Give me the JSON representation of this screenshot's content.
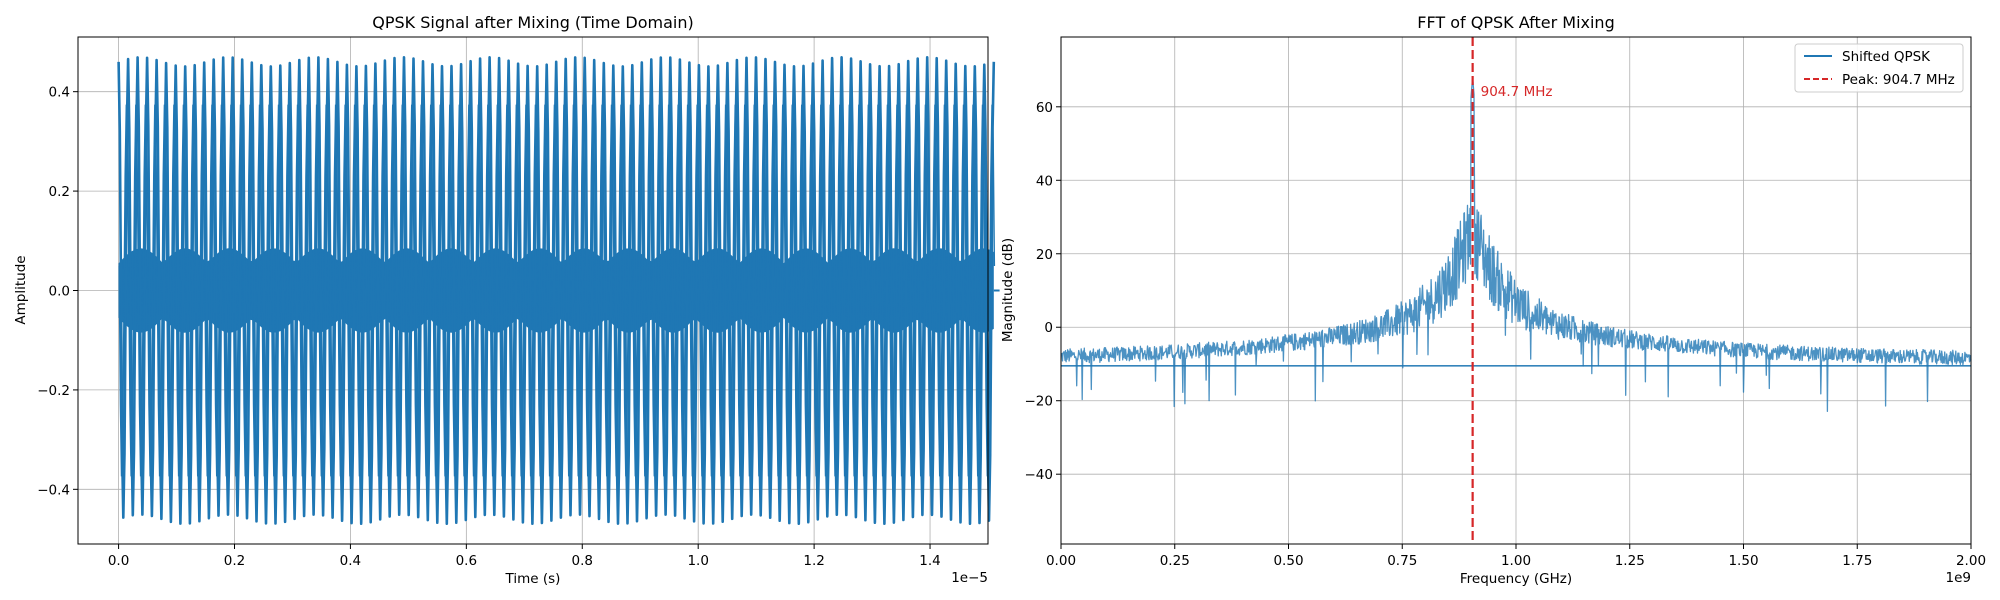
{
  "chart_data": [
    {
      "type": "line",
      "title": "QPSK Signal after Mixing (Time Domain)",
      "xlabel": "Time (s)",
      "ylabel": "Amplitude",
      "x_offset_label": "1e−5",
      "xlim": [
        -0.07,
        1.5
      ],
      "ylim": [
        -0.51,
        0.51
      ],
      "xticks": [
        0.0,
        0.2,
        0.4,
        0.6,
        0.8,
        1.0,
        1.2,
        1.4
      ],
      "xtick_labels": [
        "0.0",
        "0.2",
        "0.4",
        "0.6",
        "0.8",
        "1.0",
        "1.2",
        "1.4"
      ],
      "yticks": [
        -0.4,
        -0.2,
        0.0,
        0.2,
        0.4
      ],
      "ytick_labels": [
        "−0.4",
        "−0.2",
        "0.0",
        "0.2",
        "0.4"
      ],
      "grid": true,
      "color": "#1f77b4",
      "series": [
        {
          "x_range": [
            0.0,
            1.51
          ],
          "envelope_amplitude": 0.46,
          "oscillation_count": 92,
          "tail_value": 0.0
        }
      ]
    },
    {
      "type": "line",
      "title": "FFT of QPSK After Mixing",
      "xlabel": "Frequency (GHz)",
      "ylabel": "Magnitude (dB)",
      "x_offset_label": "1e9",
      "xlim": [
        0.0,
        2.0
      ],
      "ylim": [
        -59,
        79
      ],
      "xticks": [
        0.0,
        0.25,
        0.5,
        0.75,
        1.0,
        1.25,
        1.5,
        1.75,
        2.0
      ],
      "xtick_labels": [
        "0.00",
        "0.25",
        "0.50",
        "0.75",
        "1.00",
        "1.25",
        "1.50",
        "1.75",
        "2.00"
      ],
      "yticks": [
        -40,
        -20,
        0,
        20,
        40,
        60
      ],
      "ytick_labels": [
        "−40",
        "−20",
        "0",
        "20",
        "40",
        "60"
      ],
      "grid": true,
      "series": [
        {
          "name": "Shifted QPSK",
          "color": "#1f77b4",
          "peak_x": 0.9047,
          "peak_y": 68,
          "edge_level": -9,
          "baseline_y": -10.5,
          "baseline_x": [
            0.0,
            2.0
          ]
        }
      ],
      "vline": {
        "x": 0.9047,
        "label": "Peak: 904.7 MHz",
        "color": "#d62728",
        "style": "dashed"
      },
      "annotation": {
        "text": "904.7 MHz",
        "x": 0.9047,
        "y": 64,
        "color": "#d62728"
      },
      "legend": {
        "placement": "top-right",
        "entries": [
          "Shifted QPSK",
          "Peak: 904.7 MHz"
        ]
      }
    }
  ]
}
